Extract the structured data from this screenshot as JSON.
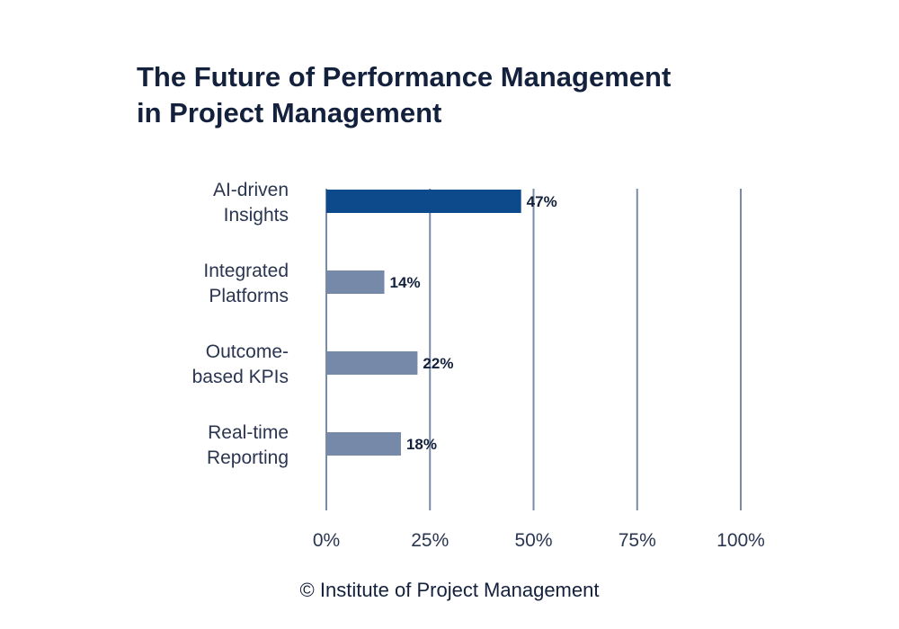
{
  "chart_data": {
    "type": "bar",
    "orientation": "horizontal",
    "title_lines": [
      "The Future of Performance Management",
      "in Project Management"
    ],
    "categories": [
      [
        "AI-driven",
        "Insights"
      ],
      [
        "Integrated",
        "Platforms"
      ],
      [
        "Outcome-",
        "based KPIs"
      ],
      [
        "Real-time",
        "Reporting"
      ]
    ],
    "values": [
      47,
      14,
      22,
      18
    ],
    "value_labels": [
      "47%",
      "14%",
      "22%",
      "18%"
    ],
    "xlim": [
      0,
      100
    ],
    "xticks": [
      0,
      25,
      50,
      75,
      100
    ],
    "xtick_labels": [
      "0%",
      "25%",
      "50%",
      "75%",
      "100%"
    ],
    "grid": "vertical",
    "highlight_index": 0,
    "colors": {
      "highlight": "#0d4a8c",
      "bar": "#7789a8",
      "grid": "#7a8ba6",
      "text": "#14213d"
    }
  },
  "footer": {
    "source": "© Institute of Project Management"
  }
}
